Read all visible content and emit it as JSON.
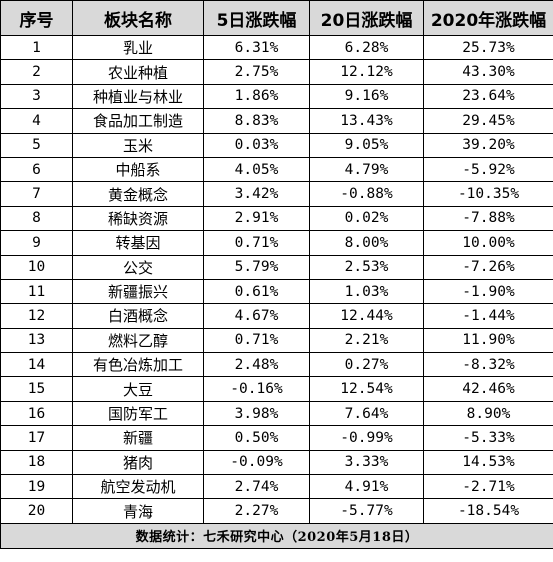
{
  "table": {
    "headers": [
      "序号",
      "板块名称",
      "5日涨跌幅",
      "20日涨跌幅",
      "2020年涨跌幅"
    ],
    "rows": [
      [
        "1",
        "乳业",
        "6.31%",
        "6.28%",
        "25.73%"
      ],
      [
        "2",
        "农业种植",
        "2.75%",
        "12.12%",
        "43.30%"
      ],
      [
        "3",
        "种植业与林业",
        "1.86%",
        "9.16%",
        "23.64%"
      ],
      [
        "4",
        "食品加工制造",
        "8.83%",
        "13.43%",
        "29.45%"
      ],
      [
        "5",
        "玉米",
        "0.03%",
        "9.05%",
        "39.20%"
      ],
      [
        "6",
        "中船系",
        "4.05%",
        "4.79%",
        "-5.92%"
      ],
      [
        "7",
        "黄金概念",
        "3.42%",
        "-0.88%",
        "-10.35%"
      ],
      [
        "8",
        "稀缺资源",
        "2.91%",
        "0.02%",
        "-7.88%"
      ],
      [
        "9",
        "转基因",
        "0.71%",
        "8.00%",
        "10.00%"
      ],
      [
        "10",
        "公交",
        "5.79%",
        "2.53%",
        "-7.26%"
      ],
      [
        "11",
        "新疆振兴",
        "0.61%",
        "1.03%",
        "-1.90%"
      ],
      [
        "12",
        "白酒概念",
        "4.67%",
        "12.44%",
        "-1.44%"
      ],
      [
        "13",
        "燃料乙醇",
        "0.71%",
        "2.21%",
        "11.90%"
      ],
      [
        "14",
        "有色冶炼加工",
        "2.48%",
        "0.27%",
        "-8.32%"
      ],
      [
        "15",
        "大豆",
        "-0.16%",
        "12.54%",
        "42.46%"
      ],
      [
        "16",
        "国防军工",
        "3.98%",
        "7.64%",
        "8.90%"
      ],
      [
        "17",
        "新疆",
        "0.50%",
        "-0.99%",
        "-5.33%"
      ],
      [
        "18",
        "猪肉",
        "-0.09%",
        "3.33%",
        "14.53%"
      ],
      [
        "19",
        "航空发动机",
        "2.74%",
        "4.91%",
        "-2.71%"
      ],
      [
        "20",
        "青海",
        "2.27%",
        "-5.77%",
        "-18.54%"
      ]
    ],
    "footer": "数据统计：七禾研究中心（2020年5月18日）"
  }
}
